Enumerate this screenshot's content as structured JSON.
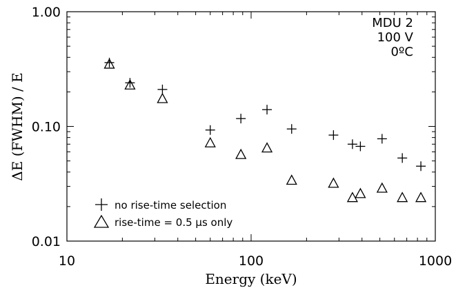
{
  "chart_data": {
    "type": "scatter",
    "xscale": "log",
    "yscale": "log",
    "xlim": [
      10,
      1000
    ],
    "ylim": [
      0.01,
      1.0
    ],
    "xticks": [
      {
        "value": 10,
        "label": "10"
      },
      {
        "value": 100,
        "label": "100"
      },
      {
        "value": 1000,
        "label": "1000"
      }
    ],
    "yticks": [
      {
        "value": 0.01,
        "label": "0.01"
      },
      {
        "value": 0.1,
        "label": "0.10"
      },
      {
        "value": 1.0,
        "label": "1.00"
      }
    ],
    "xlabel": "Energy (keV)",
    "ylabel": "ΔE (FWHM) / E",
    "grid": false,
    "legend_position": "bottom-left",
    "annotations": [
      "MDU 2",
      "100 V",
      "0ºC"
    ],
    "series": [
      {
        "name": "no rise-time selection",
        "marker": "plus",
        "x": [
          17,
          22,
          33,
          60,
          88,
          122,
          166,
          280,
          355,
          392,
          514,
          662,
          835
        ],
        "y": [
          0.36,
          0.24,
          0.21,
          0.093,
          0.117,
          0.14,
          0.095,
          0.084,
          0.07,
          0.067,
          0.078,
          0.053,
          0.045
        ]
      },
      {
        "name": "rise-time = 0.5 μs only",
        "marker": "triangle",
        "x": [
          17,
          22,
          33,
          60,
          88,
          122,
          166,
          280,
          355,
          392,
          514,
          662,
          835
        ],
        "y": [
          0.35,
          0.23,
          0.175,
          0.072,
          0.057,
          0.065,
          0.034,
          0.032,
          0.024,
          0.026,
          0.029,
          0.024,
          0.024
        ]
      }
    ]
  }
}
